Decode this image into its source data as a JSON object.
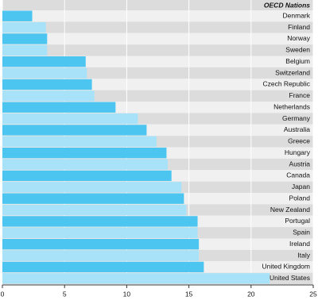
{
  "chart_data": {
    "type": "bar",
    "orientation": "horizontal",
    "title": "OECD Nations",
    "categories": [
      "Denmark",
      "Finland",
      "Norway",
      "Sweden",
      "Belgium",
      "Switzerland",
      "Czech Republic",
      "France",
      "Netherlands",
      "Germany",
      "Australia",
      "Greece",
      "Hungary",
      "Austria",
      "Canada",
      "Japan",
      "Poland",
      "New Zealand",
      "Portugal",
      "Spain",
      "Ireland",
      "Italy",
      "United Kingdom",
      "United States"
    ],
    "values": [
      2.4,
      3.5,
      3.6,
      3.6,
      6.7,
      6.8,
      7.2,
      7.4,
      9.1,
      10.9,
      11.6,
      12.4,
      13.2,
      13.3,
      13.6,
      14.4,
      14.6,
      14.8,
      15.7,
      15.7,
      15.8,
      15.8,
      16.2,
      21.5
    ],
    "colors": [
      "#4cc6f0",
      "#a8e2f8"
    ],
    "xlim": [
      0,
      25
    ],
    "xticks": [
      0,
      5,
      10,
      15,
      20,
      25
    ],
    "grid": true
  }
}
